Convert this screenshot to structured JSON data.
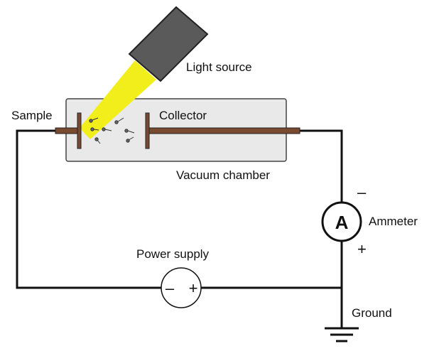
{
  "labels": {
    "light_source": "Light source",
    "sample": "Sample",
    "collector": "Collector",
    "vacuum_chamber": "Vacuum chamber",
    "ammeter": "Ammeter",
    "power_supply": "Power supply",
    "ground": "Ground"
  },
  "symbols": {
    "ammeter_letter": "A",
    "ammeter_top_sign": "–",
    "ammeter_bottom_sign": "+",
    "supply_negative": "–",
    "supply_positive": "+"
  },
  "colors": {
    "wire": "#111111",
    "electrode": "#7a4a30",
    "beam": "#f2ee1c",
    "lamp": "#555555",
    "chamber_fill": "#e9e9e9"
  }
}
